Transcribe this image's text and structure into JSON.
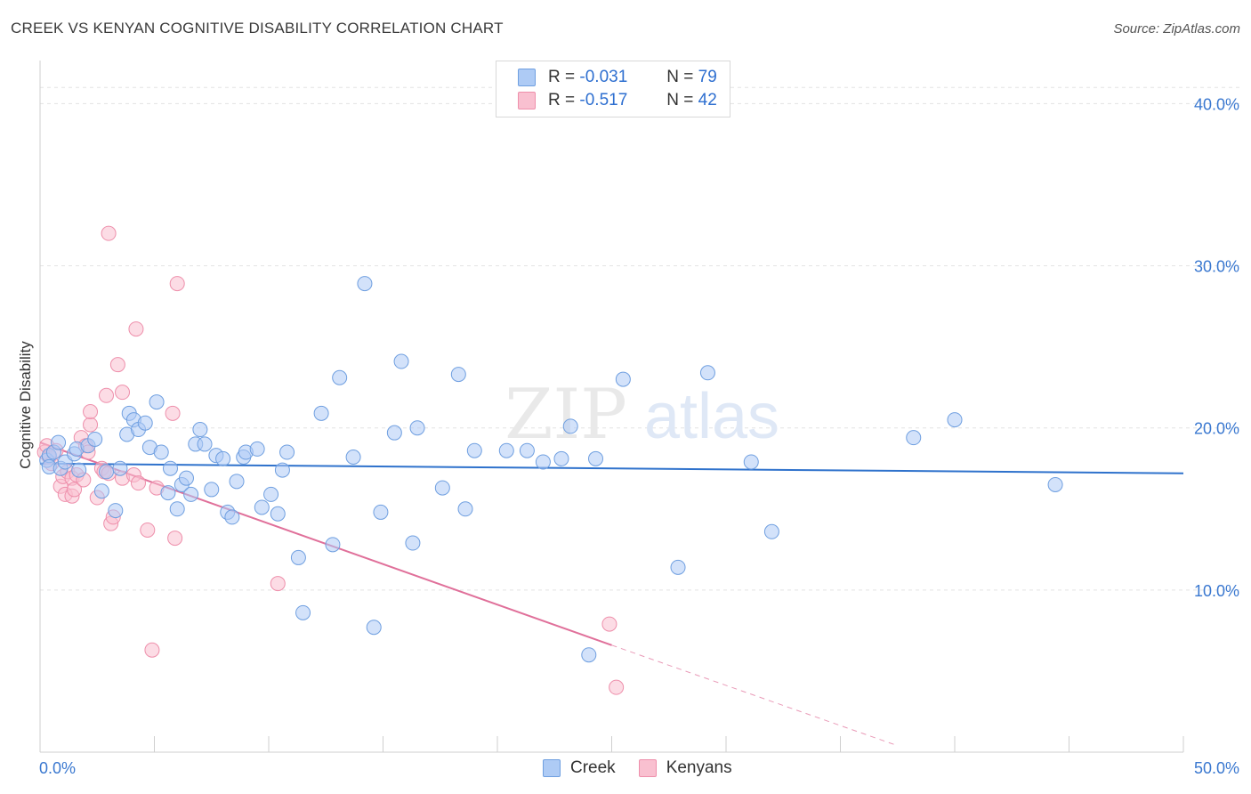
{
  "header": {
    "title": "CREEK VS KENYAN COGNITIVE DISABILITY CORRELATION CHART",
    "source": "Source: ZipAtlas.com"
  },
  "legend": {
    "rows": [
      {
        "r_label": "R =",
        "r_value": "-0.031",
        "n_label": "N =",
        "n_value": "79"
      },
      {
        "r_label": "R =",
        "r_value": "-0.517",
        "n_label": "N =",
        "n_value": "42"
      }
    ]
  },
  "bottom_legend": [
    "Creek",
    "Kenyans"
  ],
  "watermark": "ZIPatlas",
  "colors": {
    "creek_fill": "#aecbf5",
    "creek_stroke": "#6f9fe0",
    "creek_line": "#2f72cc",
    "kenyans_fill": "#f9c0d0",
    "kenyans_stroke": "#ee8fab",
    "kenyans_line": "#e0709a",
    "tick_text": "#3a78d0"
  },
  "chart_data": {
    "type": "scatter",
    "title": "CREEK VS KENYAN COGNITIVE DISABILITY CORRELATION CHART",
    "xlabel": "",
    "ylabel": "Cognitive Disability",
    "xlim": [
      0,
      50
    ],
    "ylim": [
      0,
      42
    ],
    "x_tick_labels": [
      "0.0%",
      "50.0%"
    ],
    "y_ticks": [
      10,
      20,
      30,
      40
    ],
    "y_tick_labels": [
      "10.0%",
      "20.0%",
      "30.0%",
      "40.0%"
    ],
    "grid": true,
    "legend_position": "top-center",
    "series": [
      {
        "name": "Creek",
        "r": -0.031,
        "n": 79,
        "trend": {
          "x": [
            0,
            50
          ],
          "y": [
            17.8,
            17.2
          ]
        },
        "points": [
          [
            0.3,
            18.0
          ],
          [
            0.4,
            18.3
          ],
          [
            0.4,
            17.6
          ],
          [
            0.6,
            18.5
          ],
          [
            0.8,
            19.1
          ],
          [
            0.9,
            17.5
          ],
          [
            1.1,
            17.9
          ],
          [
            1.5,
            18.4
          ],
          [
            1.6,
            18.7
          ],
          [
            1.7,
            17.4
          ],
          [
            2.1,
            18.9
          ],
          [
            2.4,
            19.3
          ],
          [
            2.7,
            16.1
          ],
          [
            2.9,
            17.3
          ],
          [
            3.3,
            14.9
          ],
          [
            3.5,
            17.5
          ],
          [
            3.8,
            19.6
          ],
          [
            3.9,
            20.9
          ],
          [
            4.1,
            20.5
          ],
          [
            4.3,
            19.9
          ],
          [
            4.6,
            20.3
          ],
          [
            4.8,
            18.8
          ],
          [
            5.1,
            21.6
          ],
          [
            5.3,
            18.5
          ],
          [
            5.6,
            16.0
          ],
          [
            5.7,
            17.5
          ],
          [
            6.0,
            15.0
          ],
          [
            6.2,
            16.5
          ],
          [
            6.4,
            16.9
          ],
          [
            6.6,
            15.9
          ],
          [
            6.8,
            19.0
          ],
          [
            7.0,
            19.9
          ],
          [
            7.2,
            19.0
          ],
          [
            7.5,
            16.2
          ],
          [
            7.7,
            18.3
          ],
          [
            8.0,
            18.1
          ],
          [
            8.2,
            14.8
          ],
          [
            8.4,
            14.5
          ],
          [
            8.6,
            16.7
          ],
          [
            8.9,
            18.2
          ],
          [
            9.0,
            18.5
          ],
          [
            9.5,
            18.7
          ],
          [
            9.7,
            15.1
          ],
          [
            10.1,
            15.9
          ],
          [
            10.4,
            14.7
          ],
          [
            10.6,
            17.4
          ],
          [
            10.8,
            18.5
          ],
          [
            11.3,
            12.0
          ],
          [
            11.5,
            8.6
          ],
          [
            12.3,
            20.9
          ],
          [
            12.8,
            12.8
          ],
          [
            13.1,
            23.1
          ],
          [
            13.7,
            18.2
          ],
          [
            14.2,
            28.9
          ],
          [
            14.6,
            7.7
          ],
          [
            14.9,
            14.8
          ],
          [
            15.5,
            19.7
          ],
          [
            15.8,
            24.1
          ],
          [
            16.3,
            12.9
          ],
          [
            16.5,
            20.0
          ],
          [
            17.6,
            16.3
          ],
          [
            18.3,
            23.3
          ],
          [
            18.6,
            15.0
          ],
          [
            19.0,
            18.6
          ],
          [
            20.4,
            18.6
          ],
          [
            21.3,
            18.6
          ],
          [
            22.0,
            17.9
          ],
          [
            22.8,
            18.1
          ],
          [
            23.2,
            20.1
          ],
          [
            24.0,
            6.0
          ],
          [
            24.3,
            18.1
          ],
          [
            25.5,
            23.0
          ],
          [
            27.9,
            11.4
          ],
          [
            29.2,
            23.4
          ],
          [
            31.1,
            17.9
          ],
          [
            32.0,
            13.6
          ],
          [
            38.2,
            19.4
          ],
          [
            40.0,
            20.5
          ],
          [
            44.4,
            16.5
          ]
        ]
      },
      {
        "name": "Kenyans",
        "r": -0.517,
        "n": 42,
        "trend": {
          "x": [
            0,
            25
          ],
          "y": [
            19.1,
            6.6
          ]
        },
        "trend_dashed": {
          "x": [
            25,
            37.5
          ],
          "y": [
            6.6,
            0.4
          ]
        },
        "points": [
          [
            0.2,
            18.5
          ],
          [
            0.3,
            18.9
          ],
          [
            0.4,
            18.2
          ],
          [
            0.5,
            17.8
          ],
          [
            0.7,
            18.6
          ],
          [
            0.9,
            16.4
          ],
          [
            1.0,
            17.0
          ],
          [
            1.1,
            15.9
          ],
          [
            1.2,
            17.3
          ],
          [
            1.4,
            16.9
          ],
          [
            1.4,
            15.8
          ],
          [
            1.5,
            16.2
          ],
          [
            1.6,
            17.1
          ],
          [
            1.8,
            19.4
          ],
          [
            1.9,
            16.8
          ],
          [
            2.0,
            18.9
          ],
          [
            2.1,
            18.5
          ],
          [
            2.2,
            20.2
          ],
          [
            2.2,
            21.0
          ],
          [
            2.5,
            15.7
          ],
          [
            2.7,
            17.5
          ],
          [
            2.8,
            17.3
          ],
          [
            3.0,
            32.0
          ],
          [
            3.1,
            14.1
          ],
          [
            3.2,
            14.5
          ],
          [
            3.4,
            23.9
          ],
          [
            3.6,
            22.2
          ],
          [
            3.6,
            16.9
          ],
          [
            4.1,
            17.1
          ],
          [
            4.2,
            26.1
          ],
          [
            4.3,
            16.6
          ],
          [
            4.7,
            13.7
          ],
          [
            4.9,
            6.3
          ],
          [
            5.1,
            16.3
          ],
          [
            5.8,
            20.9
          ],
          [
            5.9,
            13.2
          ],
          [
            6.0,
            28.9
          ],
          [
            10.4,
            10.4
          ],
          [
            24.9,
            7.9
          ],
          [
            25.2,
            4.0
          ],
          [
            2.9,
            22.0
          ],
          [
            3.0,
            17.2
          ]
        ]
      }
    ]
  }
}
